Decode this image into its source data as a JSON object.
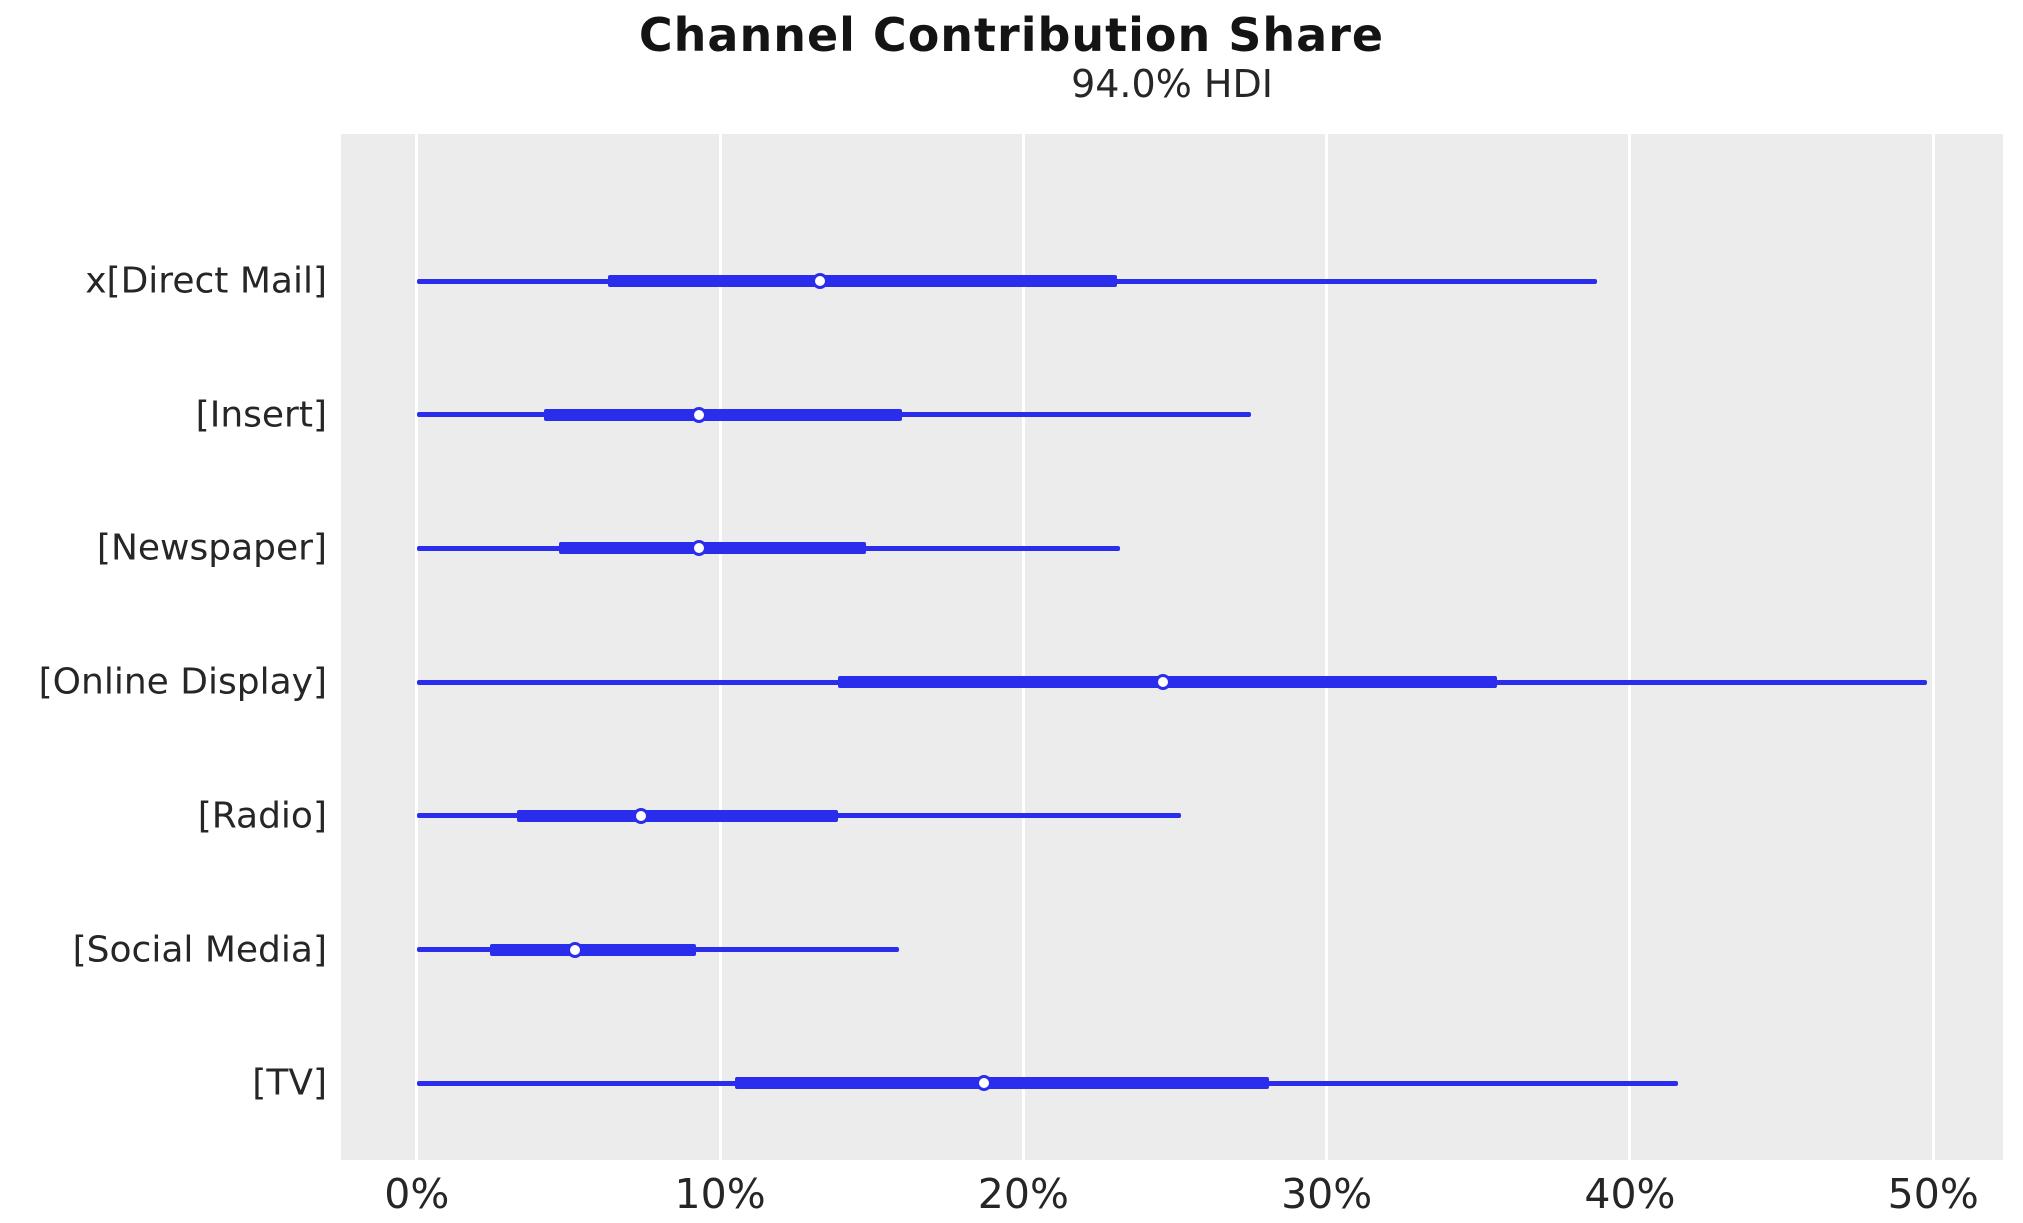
{
  "title": "Channel Contribution Share",
  "subtitle": "94.0% HDI",
  "colors": {
    "line": "#2a2eec",
    "marker_fill": "#ffffff",
    "panel_background": "#ececec",
    "gridline": "#ffffff",
    "text": "#262626",
    "title_text": "#141414",
    "figure_background": "#ffffff"
  },
  "chart_data": {
    "type": "forest",
    "title": "Channel Contribution Share",
    "subtitle": "94.0% HDI",
    "orientation": "horizontal",
    "unit": "%",
    "xlabel": "",
    "ylabel": "",
    "xlim": [
      -2.5,
      52.3
    ],
    "x_tick_values": [
      0,
      10,
      20,
      30,
      40,
      50
    ],
    "x_tick_labels": [
      "0%",
      "10%",
      "20%",
      "30%",
      "40%",
      "50%"
    ],
    "grid": "vertical white gridlines on light gray panel",
    "legend": "none",
    "marker": "white circle with blue ring at median",
    "rows": [
      {
        "label": "x[Direct Mail]",
        "hdi_low": 0.0,
        "q_low": 6.3,
        "median": 13.3,
        "q_high": 23.1,
        "hdi_high": 38.9
      },
      {
        "label": "[Insert]",
        "hdi_low": 0.0,
        "q_low": 4.2,
        "median": 9.3,
        "q_high": 16.0,
        "hdi_high": 27.5
      },
      {
        "label": "[Newspaper]",
        "hdi_low": 0.0,
        "q_low": 4.7,
        "median": 9.3,
        "q_high": 14.8,
        "hdi_high": 23.2
      },
      {
        "label": "[Online Display]",
        "hdi_low": 0.0,
        "q_low": 13.9,
        "median": 24.6,
        "q_high": 35.6,
        "hdi_high": 49.8
      },
      {
        "label": "[Radio]",
        "hdi_low": 0.0,
        "q_low": 3.3,
        "median": 7.4,
        "q_high": 13.9,
        "hdi_high": 25.2
      },
      {
        "label": "[Social Media]",
        "hdi_low": 0.0,
        "q_low": 2.4,
        "median": 5.2,
        "q_high": 9.2,
        "hdi_high": 15.9
      },
      {
        "label": "[TV]",
        "hdi_low": 0.0,
        "q_low": 10.5,
        "median": 18.7,
        "q_high": 28.1,
        "hdi_high": 41.6
      }
    ]
  }
}
